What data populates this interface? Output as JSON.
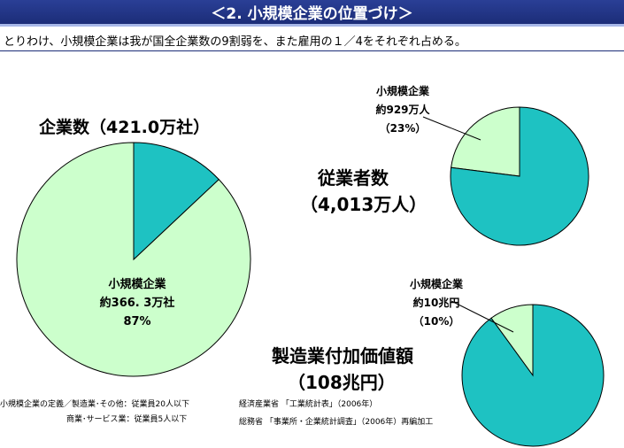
{
  "header": {
    "title": "＜2. 小規模企業の位置づけ＞"
  },
  "subtitle": "とりわけ、小規模企業は我が国全企業数の9割弱を、また雇用の１／4をそれぞれ占める。",
  "charts": {
    "firms": {
      "title": "企業数（421.0万社）",
      "label_lines": [
        "小規模企業",
        "約366. 3万社",
        "87%"
      ]
    },
    "employees": {
      "title_lines": [
        "従業者数",
        "（4,013万人）"
      ],
      "label_lines": [
        "小規模企業",
        "約929万人",
        "（23%）"
      ]
    },
    "value_added": {
      "title_lines": [
        "製造業付加価値額",
        "（108兆円）"
      ],
      "label_lines": [
        "小規模企業",
        "約10兆円",
        "（10%）"
      ]
    }
  },
  "notes": {
    "definition_line1": "小規模企業の定義／製造業･その他：従業員20人以下",
    "definition_line2": "商業･サービス業：従業員5人以下",
    "source_line1": "経済産業省 「工業統計表」（2006年）",
    "source_line2": "総務省 「事業所・企業統計調査」（2006年）再編加工"
  },
  "colors": {
    "small_firms": "#ccffcc",
    "others": "#1ec2c2",
    "outline": "#000000",
    "header_bg": "#23368a"
  },
  "chart_data": [
    {
      "type": "pie",
      "title": "企業数（421.0万社）",
      "slices": [
        {
          "label": "小規模企業",
          "value": 87,
          "amount": "約366. 3万社"
        },
        {
          "label": "",
          "value": 13
        }
      ]
    },
    {
      "type": "pie",
      "title": "従業者数（4,013万人）",
      "slices": [
        {
          "label": "小規模企業",
          "value": 23,
          "amount": "約929万人"
        },
        {
          "label": "",
          "value": 77
        }
      ]
    },
    {
      "type": "pie",
      "title": "製造業付加価値額（108兆円）",
      "slices": [
        {
          "label": "小規模企業",
          "value": 10,
          "amount": "約10兆円"
        },
        {
          "label": "",
          "value": 90
        }
      ]
    }
  ]
}
